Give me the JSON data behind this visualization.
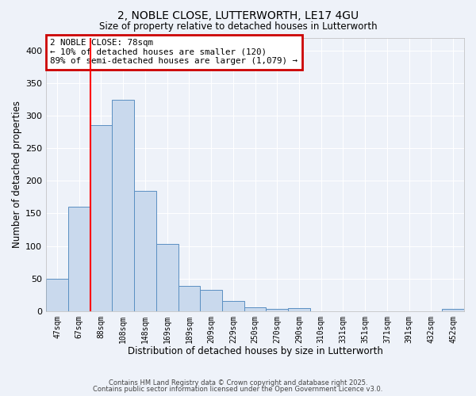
{
  "title1": "2, NOBLE CLOSE, LUTTERWORTH, LE17 4GU",
  "title2": "Size of property relative to detached houses in Lutterworth",
  "xlabel": "Distribution of detached houses by size in Lutterworth",
  "ylabel": "Number of detached properties",
  "categories": [
    "47sqm",
    "67sqm",
    "88sqm",
    "108sqm",
    "148sqm",
    "169sqm",
    "189sqm",
    "209sqm",
    "229sqm",
    "250sqm",
    "270sqm",
    "290sqm",
    "310sqm",
    "331sqm",
    "351sqm",
    "371sqm",
    "391sqm",
    "432sqm",
    "452sqm"
  ],
  "values": [
    50,
    160,
    285,
    325,
    185,
    103,
    38,
    32,
    15,
    6,
    3,
    4,
    0,
    0,
    0,
    0,
    0,
    0,
    3
  ],
  "bar_color": "#c9d9ed",
  "bar_edge_color": "#5a8fc2",
  "bar_width": 1.0,
  "red_line_x": 1.5,
  "ylim": [
    0,
    420
  ],
  "yticks": [
    0,
    50,
    100,
    150,
    200,
    250,
    300,
    350,
    400
  ],
  "annotation_text": "2 NOBLE CLOSE: 78sqm\n← 10% of detached houses are smaller (120)\n89% of semi-detached houses are larger (1,079) →",
  "annotation_box_color": "#ffffff",
  "annotation_border_color": "#cc0000",
  "background_color": "#eef2f9",
  "grid_color": "#ffffff",
  "footer1": "Contains HM Land Registry data © Crown copyright and database right 2025.",
  "footer2": "Contains public sector information licensed under the Open Government Licence v3.0."
}
